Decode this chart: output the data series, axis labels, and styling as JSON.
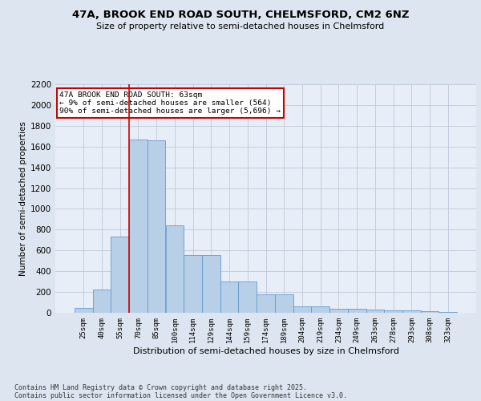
{
  "title1": "47A, BROOK END ROAD SOUTH, CHELMSFORD, CM2 6NZ",
  "title2": "Size of property relative to semi-detached houses in Chelmsford",
  "xlabel": "Distribution of semi-detached houses by size in Chelmsford",
  "ylabel": "Number of semi-detached properties",
  "categories": [
    "25sqm",
    "40sqm",
    "55sqm",
    "70sqm",
    "85sqm",
    "100sqm",
    "114sqm",
    "129sqm",
    "144sqm",
    "159sqm",
    "174sqm",
    "189sqm",
    "204sqm",
    "219sqm",
    "234sqm",
    "249sqm",
    "263sqm",
    "278sqm",
    "293sqm",
    "308sqm",
    "323sqm"
  ],
  "values": [
    45,
    225,
    730,
    1670,
    1660,
    845,
    555,
    555,
    300,
    300,
    180,
    180,
    65,
    65,
    40,
    40,
    30,
    20,
    20,
    15,
    8
  ],
  "bar_color": "#b8cfe8",
  "bar_edge_color": "#6699cc",
  "vline_x": 2.5,
  "vline_color": "#cc0000",
  "annotation_title": "47A BROOK END ROAD SOUTH: 63sqm",
  "annotation_line1": "← 9% of semi-detached houses are smaller (564)",
  "annotation_line2": "90% of semi-detached houses are larger (5,696) →",
  "annotation_box_color": "#cc0000",
  "footer1": "Contains HM Land Registry data © Crown copyright and database right 2025.",
  "footer2": "Contains public sector information licensed under the Open Government Licence v3.0.",
  "ylim": [
    0,
    2200
  ],
  "yticks": [
    0,
    200,
    400,
    600,
    800,
    1000,
    1200,
    1400,
    1600,
    1800,
    2000,
    2200
  ],
  "bg_color": "#dde6f0",
  "plot_bg_color": "#e8eef8",
  "grid_color": "#c0c8d8"
}
